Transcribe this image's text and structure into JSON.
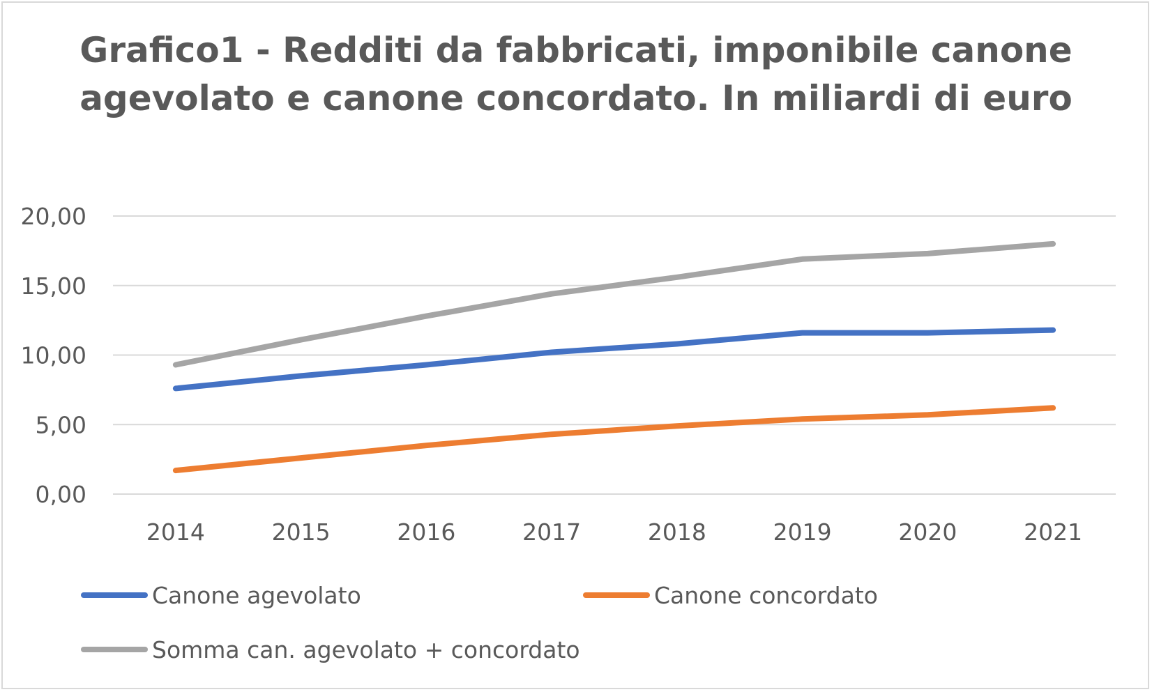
{
  "chart_data": {
    "type": "line",
    "title_lines": [
      "Grafico1 - Redditi da fabbricati, imponibile canone",
      "agevolato e canone concordato. In miliardi di euro"
    ],
    "categories": [
      "2014",
      "2015",
      "2016",
      "2017",
      "2018",
      "2019",
      "2020",
      "2021"
    ],
    "y_ticks": [
      "0,00",
      "5,00",
      "10,00",
      "15,00",
      "20,00"
    ],
    "ylim": [
      0,
      20
    ],
    "grid": true,
    "legend_position": "bottom",
    "series": [
      {
        "name": "Canone agevolato",
        "color": "#4472c4",
        "values": [
          7.6,
          8.5,
          9.3,
          10.2,
          10.8,
          11.6,
          11.6,
          11.8
        ]
      },
      {
        "name": "Canone concordato",
        "color": "#ed7d31",
        "values": [
          1.7,
          2.6,
          3.5,
          4.3,
          4.9,
          5.4,
          5.7,
          6.2
        ]
      },
      {
        "name": "Somma can. agevolato + concordato",
        "color": "#a5a5a5",
        "values": [
          9.3,
          11.1,
          12.8,
          14.4,
          15.6,
          16.9,
          17.3,
          18.0
        ]
      }
    ]
  }
}
